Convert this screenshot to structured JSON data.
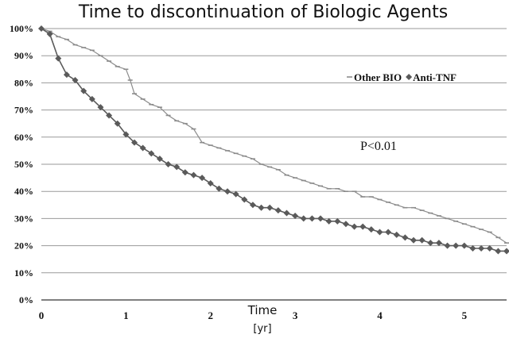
{
  "chart_data": {
    "type": "line",
    "title": "Time to discontinuation of Biologic Agents",
    "xlabel": "Time",
    "xunit": "[yr]",
    "ylabel": "",
    "xlim": [
      0,
      5.5
    ],
    "ylim": [
      0,
      100
    ],
    "xticks": [
      0,
      1,
      2,
      3,
      4,
      5
    ],
    "yticks": [
      0,
      10,
      20,
      30,
      40,
      50,
      60,
      70,
      80,
      90,
      100
    ],
    "ytick_labels": [
      "0%",
      "10%",
      "20%",
      "30%",
      "40%",
      "50%",
      "60%",
      "70%",
      "80%",
      "90%",
      "100%"
    ],
    "grid": "horizontal",
    "legend_position": "top-right",
    "annotation": "P<0.01",
    "series": [
      {
        "name": "Other BIO",
        "color": "#8c8c8c",
        "marker": "dash",
        "x": [
          0,
          0.1,
          0.2,
          0.3,
          0.4,
          0.5,
          0.6,
          0.7,
          0.8,
          0.9,
          1.0,
          1.05,
          1.1,
          1.2,
          1.3,
          1.4,
          1.5,
          1.6,
          1.7,
          1.8,
          1.9,
          2.0,
          2.1,
          2.2,
          2.3,
          2.4,
          2.5,
          2.6,
          2.7,
          2.8,
          2.9,
          3.0,
          3.1,
          3.2,
          3.3,
          3.4,
          3.5,
          3.6,
          3.7,
          3.8,
          3.9,
          4.0,
          4.1,
          4.2,
          4.3,
          4.4,
          4.5,
          4.6,
          4.7,
          4.8,
          4.9,
          5.0,
          5.1,
          5.2,
          5.3,
          5.4,
          5.5
        ],
        "values": [
          100,
          99,
          97,
          96,
          94,
          93,
          92,
          90,
          88,
          86,
          85,
          81,
          76,
          74,
          72,
          71,
          68,
          66,
          65,
          63,
          58,
          57,
          56,
          55,
          54,
          53,
          52,
          50,
          49,
          48,
          46,
          45,
          44,
          43,
          42,
          41,
          41,
          40,
          40,
          38,
          38,
          37,
          36,
          35,
          34,
          34,
          33,
          32,
          31,
          30,
          29,
          28,
          27,
          26,
          25,
          23,
          21
        ]
      },
      {
        "name": "Anti-TNF",
        "color": "#5a5a5a",
        "marker": "diamond",
        "x": [
          0,
          0.1,
          0.2,
          0.3,
          0.4,
          0.5,
          0.6,
          0.7,
          0.8,
          0.9,
          1.0,
          1.1,
          1.2,
          1.3,
          1.4,
          1.5,
          1.6,
          1.7,
          1.8,
          1.9,
          2.0,
          2.1,
          2.2,
          2.3,
          2.4,
          2.5,
          2.6,
          2.7,
          2.8,
          2.9,
          3.0,
          3.1,
          3.2,
          3.3,
          3.4,
          3.5,
          3.6,
          3.7,
          3.8,
          3.9,
          4.0,
          4.1,
          4.2,
          4.3,
          4.4,
          4.5,
          4.6,
          4.7,
          4.8,
          4.9,
          5.0,
          5.1,
          5.2,
          5.3,
          5.4,
          5.5
        ],
        "values": [
          100,
          98,
          89,
          83,
          81,
          77,
          74,
          71,
          68,
          65,
          61,
          58,
          56,
          54,
          52,
          50,
          49,
          47,
          46,
          45,
          43,
          41,
          40,
          39,
          37,
          35,
          34,
          34,
          33,
          32,
          31,
          30,
          30,
          30,
          29,
          29,
          28,
          27,
          27,
          26,
          25,
          25,
          24,
          23,
          22,
          22,
          21,
          21,
          20,
          20,
          20,
          19,
          19,
          19,
          18,
          18
        ]
      }
    ]
  }
}
